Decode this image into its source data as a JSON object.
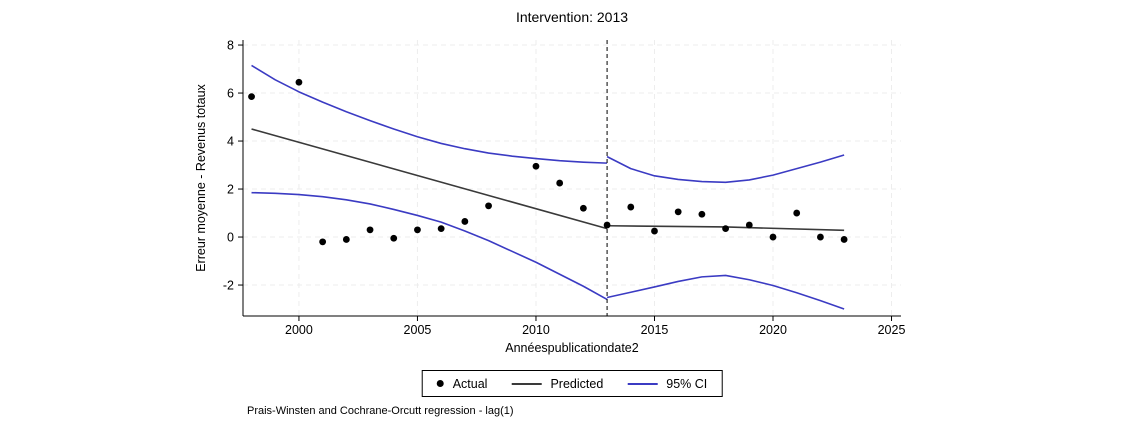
{
  "note": "Prais-Winsten and Cochrane-Orcutt regression - lag(1)",
  "legend": {
    "items": [
      {
        "label": "Actual",
        "marker": "dot",
        "color": "#000000"
      },
      {
        "label": "Predicted",
        "marker": "line",
        "color": "#3a3a3a"
      },
      {
        "label": "95% CI",
        "marker": "line",
        "color": "#3b3bc3"
      }
    ]
  },
  "chart_data": {
    "type": "scatter",
    "title": "Intervention: 2013",
    "xlabel": "Annéespublicationdate2",
    "ylabel": "Erreur moyenne - Revenus totaux",
    "x_ticks": [
      2000,
      2005,
      2010,
      2015,
      2020,
      2025
    ],
    "y_ticks": [
      -2,
      0,
      2,
      4,
      6,
      8
    ],
    "xlim": [
      1997.64,
      2025.4
    ],
    "ylim": [
      -3.29,
      8.21
    ],
    "grid": "on",
    "legend_position": "bottom",
    "intervention_x": 2013,
    "colors": {
      "grid": "#ededed",
      "axis": "#000000",
      "intervention": "#000000",
      "actual": "#000000",
      "predicted": "#3a3a3a",
      "ci": "#3b3bc3"
    },
    "series": [
      {
        "name": "Actual",
        "kind": "scatter",
        "color": "#000000",
        "points": [
          [
            1998,
            5.85
          ],
          [
            2000,
            6.45
          ],
          [
            2001,
            -0.2
          ],
          [
            2002,
            -0.1
          ],
          [
            2003,
            0.3
          ],
          [
            2004,
            -0.05
          ],
          [
            2005,
            0.3
          ],
          [
            2006,
            0.35
          ],
          [
            2007,
            0.65
          ],
          [
            2008,
            1.3
          ],
          [
            2010,
            2.95
          ],
          [
            2011,
            2.25
          ],
          [
            2012,
            1.2
          ],
          [
            2013,
            0.5
          ],
          [
            2014,
            1.25
          ],
          [
            2015,
            0.25
          ],
          [
            2016,
            1.05
          ],
          [
            2017,
            0.95
          ],
          [
            2018,
            0.35
          ],
          [
            2019,
            0.5
          ],
          [
            2020,
            0.0
          ],
          [
            2021,
            1.0
          ],
          [
            2022,
            0.0
          ],
          [
            2023,
            -0.1
          ]
        ]
      },
      {
        "name": "Predicted",
        "kind": "line",
        "color": "#3a3a3a",
        "width": 1.6,
        "segments": [
          [
            [
              1998,
              4.5
            ],
            [
              2013,
              0.35
            ]
          ],
          [
            [
              2013,
              0.47
            ],
            [
              2018,
              0.42
            ],
            [
              2023,
              0.28
            ]
          ]
        ]
      },
      {
        "name": "95% CI upper",
        "kind": "line",
        "color": "#3b3bc3",
        "width": 1.6,
        "segments": [
          [
            [
              1998,
              7.15
            ],
            [
              1999,
              6.55
            ],
            [
              2000,
              6.05
            ],
            [
              2001,
              5.62
            ],
            [
              2002,
              5.22
            ],
            [
              2003,
              4.85
            ],
            [
              2004,
              4.5
            ],
            [
              2005,
              4.18
            ],
            [
              2006,
              3.9
            ],
            [
              2007,
              3.68
            ],
            [
              2008,
              3.5
            ],
            [
              2009,
              3.37
            ],
            [
              2010,
              3.27
            ],
            [
              2011,
              3.18
            ],
            [
              2012,
              3.12
            ],
            [
              2013,
              3.08
            ]
          ],
          [
            [
              2013,
              3.35
            ],
            [
              2014,
              2.85
            ],
            [
              2015,
              2.55
            ],
            [
              2016,
              2.4
            ],
            [
              2017,
              2.31
            ],
            [
              2018,
              2.28
            ],
            [
              2019,
              2.38
            ],
            [
              2020,
              2.58
            ],
            [
              2021,
              2.85
            ],
            [
              2022,
              3.12
            ],
            [
              2023,
              3.42
            ]
          ]
        ]
      },
      {
        "name": "95% CI lower",
        "kind": "line",
        "color": "#3b3bc3",
        "width": 1.6,
        "segments": [
          [
            [
              1998,
              1.85
            ],
            [
              1999,
              1.82
            ],
            [
              2000,
              1.77
            ],
            [
              2001,
              1.68
            ],
            [
              2002,
              1.55
            ],
            [
              2003,
              1.38
            ],
            [
              2004,
              1.15
            ],
            [
              2005,
              0.9
            ],
            [
              2006,
              0.62
            ],
            [
              2007,
              0.25
            ],
            [
              2008,
              -0.15
            ],
            [
              2009,
              -0.6
            ],
            [
              2010,
              -1.05
            ],
            [
              2011,
              -1.55
            ],
            [
              2012,
              -2.05
            ],
            [
              2013,
              -2.6
            ]
          ],
          [
            [
              2013,
              -2.52
            ],
            [
              2014,
              -2.3
            ],
            [
              2015,
              -2.08
            ],
            [
              2016,
              -1.85
            ],
            [
              2017,
              -1.66
            ],
            [
              2018,
              -1.6
            ],
            [
              2019,
              -1.78
            ],
            [
              2020,
              -2.02
            ],
            [
              2021,
              -2.32
            ],
            [
              2022,
              -2.65
            ],
            [
              2023,
              -3.0
            ]
          ]
        ]
      }
    ]
  }
}
